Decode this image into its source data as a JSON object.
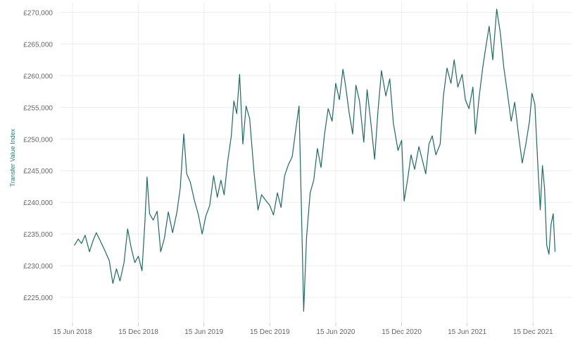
{
  "chart_data": {
    "type": "line",
    "title": "",
    "xlabel": "",
    "ylabel": "Transfer Value Index",
    "y_ticks": [
      "£225,000",
      "£230,000",
      "£235,000",
      "£240,000",
      "£245,000",
      "£250,000",
      "£255,000",
      "£260,000",
      "£265,000",
      "£270,000"
    ],
    "y_tick_values": [
      225000,
      230000,
      235000,
      240000,
      245000,
      250000,
      255000,
      260000,
      265000,
      270000
    ],
    "x_ticks": [
      "15 Jun 2018",
      "15 Dec 2018",
      "15 Jun 2019",
      "15 Dec 2019",
      "15 Jun 2020",
      "15 Dec 2020",
      "15 Jun 2021",
      "15 Dec 2021"
    ],
    "x_tick_dates": [
      "2018-06-15",
      "2018-12-15",
      "2019-06-15",
      "2019-12-15",
      "2020-06-15",
      "2020-12-15",
      "2021-06-15",
      "2021-12-15"
    ],
    "xlim": [
      "2018-05-01",
      "2022-04-01"
    ],
    "ylim": [
      221000,
      271500
    ],
    "grid": "vertical and horizontal, light",
    "colors": {
      "line": "#1e6b61",
      "ylabel": "#2a7a6f",
      "tick": "#666666",
      "grid": "#ececec"
    },
    "series": [
      {
        "values": [
          [
            "2018-06-20",
            233200
          ],
          [
            "2018-07-01",
            234200
          ],
          [
            "2018-07-10",
            233500
          ],
          [
            "2018-07-20",
            234800
          ],
          [
            "2018-08-01",
            232200
          ],
          [
            "2018-08-10",
            233800
          ],
          [
            "2018-08-20",
            235200
          ],
          [
            "2018-09-01",
            233800
          ],
          [
            "2018-09-12",
            232500
          ],
          [
            "2018-09-25",
            230800
          ],
          [
            "2018-10-05",
            227200
          ],
          [
            "2018-10-15",
            229500
          ],
          [
            "2018-10-25",
            227600
          ],
          [
            "2018-11-05",
            230500
          ],
          [
            "2018-11-15",
            235800
          ],
          [
            "2018-11-25",
            232800
          ],
          [
            "2018-12-05",
            230500
          ],
          [
            "2018-12-15",
            231500
          ],
          [
            "2018-12-25",
            229200
          ],
          [
            "2019-01-02",
            236800
          ],
          [
            "2019-01-08",
            244000
          ],
          [
            "2019-01-15",
            238200
          ],
          [
            "2019-01-25",
            237200
          ],
          [
            "2019-02-05",
            238600
          ],
          [
            "2019-02-15",
            232200
          ],
          [
            "2019-02-25",
            234300
          ],
          [
            "2019-03-08",
            238500
          ],
          [
            "2019-03-20",
            235200
          ],
          [
            "2019-04-01",
            238500
          ],
          [
            "2019-04-10",
            242200
          ],
          [
            "2019-04-20",
            250800
          ],
          [
            "2019-04-28",
            244500
          ],
          [
            "2019-05-08",
            243200
          ],
          [
            "2019-05-20",
            240200
          ],
          [
            "2019-05-30",
            238200
          ],
          [
            "2019-06-10",
            235000
          ],
          [
            "2019-06-20",
            237800
          ],
          [
            "2019-07-01",
            239500
          ],
          [
            "2019-07-12",
            244200
          ],
          [
            "2019-07-22",
            240800
          ],
          [
            "2019-08-01",
            243500
          ],
          [
            "2019-08-10",
            241200
          ],
          [
            "2019-08-20",
            246500
          ],
          [
            "2019-08-30",
            250500
          ],
          [
            "2019-09-06",
            256000
          ],
          [
            "2019-09-14",
            254000
          ],
          [
            "2019-09-22",
            260200
          ],
          [
            "2019-10-01",
            249200
          ],
          [
            "2019-10-10",
            255200
          ],
          [
            "2019-10-20",
            253200
          ],
          [
            "2019-11-01",
            244800
          ],
          [
            "2019-11-12",
            238800
          ],
          [
            "2019-11-22",
            241200
          ],
          [
            "2019-12-05",
            240200
          ],
          [
            "2019-12-15",
            239500
          ],
          [
            "2019-12-25",
            238000
          ],
          [
            "2020-01-05",
            241500
          ],
          [
            "2020-01-15",
            239200
          ],
          [
            "2020-01-25",
            244200
          ],
          [
            "2020-02-05",
            246000
          ],
          [
            "2020-02-15",
            247200
          ],
          [
            "2020-02-25",
            251500
          ],
          [
            "2020-03-05",
            255200
          ],
          [
            "2020-03-12",
            238000
          ],
          [
            "2020-03-18",
            222800
          ],
          [
            "2020-03-26",
            234500
          ],
          [
            "2020-04-05",
            241500
          ],
          [
            "2020-04-15",
            243500
          ],
          [
            "2020-04-25",
            248500
          ],
          [
            "2020-05-05",
            245500
          ],
          [
            "2020-05-15",
            250800
          ],
          [
            "2020-05-25",
            254800
          ],
          [
            "2020-06-05",
            252800
          ],
          [
            "2020-06-15",
            258800
          ],
          [
            "2020-06-25",
            256200
          ],
          [
            "2020-07-05",
            261000
          ],
          [
            "2020-07-12",
            258500
          ],
          [
            "2020-07-22",
            254200
          ],
          [
            "2020-08-01",
            250800
          ],
          [
            "2020-08-10",
            258500
          ],
          [
            "2020-08-20",
            256000
          ],
          [
            "2020-09-01",
            249500
          ],
          [
            "2020-09-10",
            257800
          ],
          [
            "2020-09-20",
            252800
          ],
          [
            "2020-10-01",
            246800
          ],
          [
            "2020-10-10",
            254200
          ],
          [
            "2020-10-20",
            260800
          ],
          [
            "2020-11-01",
            256800
          ],
          [
            "2020-11-12",
            259500
          ],
          [
            "2020-11-22",
            252500
          ],
          [
            "2020-12-05",
            248200
          ],
          [
            "2020-12-15",
            249800
          ],
          [
            "2020-12-22",
            240200
          ],
          [
            "2021-01-01",
            243800
          ],
          [
            "2021-01-10",
            247500
          ],
          [
            "2021-01-20",
            245200
          ],
          [
            "2021-02-01",
            248800
          ],
          [
            "2021-02-10",
            246800
          ],
          [
            "2021-02-20",
            244500
          ],
          [
            "2021-03-01",
            249200
          ],
          [
            "2021-03-10",
            250500
          ],
          [
            "2021-03-20",
            247500
          ],
          [
            "2021-04-01",
            249200
          ],
          [
            "2021-04-10",
            256800
          ],
          [
            "2021-04-20",
            261200
          ],
          [
            "2021-05-01",
            258800
          ],
          [
            "2021-05-10",
            262500
          ],
          [
            "2021-05-20",
            258200
          ],
          [
            "2021-06-01",
            260200
          ],
          [
            "2021-06-10",
            256200
          ],
          [
            "2021-06-20",
            254800
          ],
          [
            "2021-07-01",
            258200
          ],
          [
            "2021-07-08",
            250800
          ],
          [
            "2021-07-18",
            256500
          ],
          [
            "2021-07-28",
            261200
          ],
          [
            "2021-08-05",
            264200
          ],
          [
            "2021-08-15",
            267800
          ],
          [
            "2021-08-25",
            262500
          ],
          [
            "2021-09-05",
            270500
          ],
          [
            "2021-09-15",
            266800
          ],
          [
            "2021-09-25",
            261200
          ],
          [
            "2021-10-05",
            257200
          ],
          [
            "2021-10-15",
            252800
          ],
          [
            "2021-10-25",
            255800
          ],
          [
            "2021-11-05",
            250500
          ],
          [
            "2021-11-15",
            246200
          ],
          [
            "2021-11-25",
            249200
          ],
          [
            "2021-12-05",
            252800
          ],
          [
            "2021-12-12",
            257200
          ],
          [
            "2021-12-20",
            255500
          ],
          [
            "2021-12-28",
            246200
          ],
          [
            "2022-01-04",
            238800
          ],
          [
            "2022-01-10",
            245800
          ],
          [
            "2022-01-16",
            242200
          ],
          [
            "2022-01-22",
            233200
          ],
          [
            "2022-01-28",
            231800
          ],
          [
            "2022-02-03",
            236500
          ],
          [
            "2022-02-09",
            238200
          ],
          [
            "2022-02-14",
            232200
          ]
        ]
      }
    ]
  }
}
